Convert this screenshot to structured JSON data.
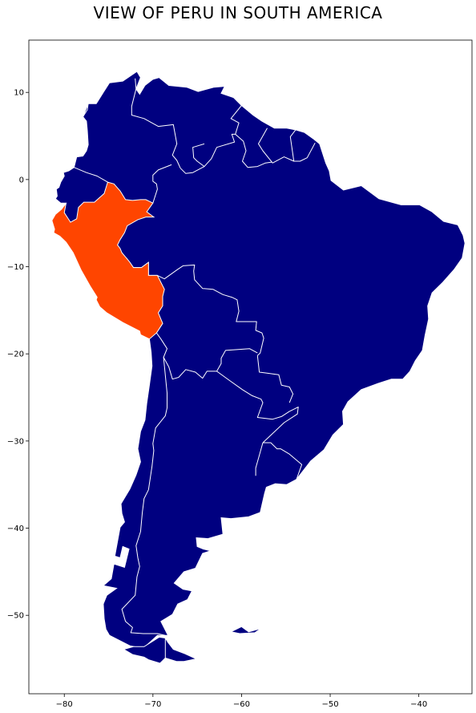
{
  "title": "VIEW OF PERU IN SOUTH AMERICA",
  "colors": {
    "land": "#000080",
    "highlight": "#ff4500",
    "border": "#ffffff",
    "background": "#ffffff"
  },
  "highlighted_country": "Peru",
  "axes": {
    "x_ticks": [
      -80,
      -70,
      -60,
      -50,
      -40
    ],
    "y_ticks": [
      10,
      0,
      -10,
      -20,
      -30,
      -40,
      -50
    ],
    "xlim": [
      -84,
      -34
    ],
    "ylim": [
      -59,
      16
    ]
  },
  "continent_outline": [
    [
      -77.9,
      7.2
    ],
    [
      -77.3,
      8.7
    ],
    [
      -76.4,
      8.7
    ],
    [
      -75.6,
      10.0
    ],
    [
      -74.9,
      11.1
    ],
    [
      -73.4,
      11.3
    ],
    [
      -71.8,
      12.4
    ],
    [
      -71.4,
      11.7
    ],
    [
      -71.9,
      10.4
    ],
    [
      -71.5,
      9.8
    ],
    [
      -70.9,
      10.8
    ],
    [
      -70.0,
      11.5
    ],
    [
      -69.3,
      11.7
    ],
    [
      -68.2,
      10.8
    ],
    [
      -66.2,
      10.6
    ],
    [
      -64.9,
      10.1
    ],
    [
      -63.1,
      10.6
    ],
    [
      -61.9,
      10.7
    ],
    [
      -62.3,
      9.9
    ],
    [
      -60.9,
      9.4
    ],
    [
      -60.0,
      8.5
    ],
    [
      -58.7,
      7.4
    ],
    [
      -57.7,
      6.7
    ],
    [
      -56.3,
      5.9
    ],
    [
      -54.9,
      5.9
    ],
    [
      -53.9,
      5.7
    ],
    [
      -52.9,
      5.4
    ],
    [
      -51.8,
      4.6
    ],
    [
      -51.2,
      4.1
    ],
    [
      -50.5,
      1.9
    ],
    [
      -50.1,
      1.0
    ],
    [
      -49.9,
      -0.1
    ],
    [
      -48.5,
      -1.2
    ],
    [
      -46.5,
      -0.7
    ],
    [
      -44.5,
      -2.2
    ],
    [
      -42.0,
      -2.9
    ],
    [
      -39.9,
      -2.9
    ],
    [
      -38.5,
      -3.7
    ],
    [
      -37.2,
      -4.8
    ],
    [
      -35.6,
      -5.2
    ],
    [
      -35.0,
      -6.4
    ],
    [
      -34.8,
      -7.3
    ],
    [
      -35.1,
      -9.0
    ],
    [
      -36.0,
      -10.3
    ],
    [
      -37.3,
      -11.8
    ],
    [
      -38.5,
      -13.0
    ],
    [
      -39.0,
      -14.5
    ],
    [
      -38.9,
      -16.0
    ],
    [
      -39.3,
      -17.9
    ],
    [
      -39.6,
      -19.6
    ],
    [
      -40.4,
      -20.8
    ],
    [
      -41.0,
      -22.0
    ],
    [
      -41.8,
      -22.9
    ],
    [
      -43.1,
      -22.9
    ],
    [
      -44.6,
      -23.4
    ],
    [
      -46.5,
      -24.1
    ],
    [
      -48.0,
      -25.5
    ],
    [
      -48.6,
      -26.6
    ],
    [
      -48.5,
      -28.1
    ],
    [
      -49.7,
      -29.3
    ],
    [
      -50.7,
      -31.0
    ],
    [
      -52.2,
      -32.3
    ],
    [
      -53.8,
      -34.4
    ],
    [
      -54.9,
      -35.0
    ],
    [
      -56.2,
      -34.9
    ],
    [
      -57.2,
      -35.3
    ],
    [
      -57.4,
      -36.0
    ],
    [
      -57.9,
      -38.2
    ],
    [
      -59.2,
      -38.7
    ],
    [
      -61.2,
      -38.9
    ],
    [
      -62.3,
      -38.8
    ],
    [
      -62.1,
      -40.7
    ],
    [
      -63.8,
      -41.2
    ],
    [
      -65.1,
      -41.1
    ],
    [
      -65.0,
      -42.1
    ],
    [
      -64.3,
      -42.4
    ],
    [
      -63.5,
      -42.6
    ],
    [
      -64.4,
      -42.9
    ],
    [
      -65.2,
      -44.6
    ],
    [
      -66.5,
      -45.0
    ],
    [
      -67.6,
      -46.3
    ],
    [
      -66.6,
      -47.0
    ],
    [
      -65.6,
      -47.2
    ],
    [
      -66.1,
      -48.2
    ],
    [
      -67.2,
      -48.7
    ],
    [
      -67.8,
      -49.9
    ],
    [
      -69.1,
      -50.7
    ],
    [
      -68.3,
      -52.3
    ],
    [
      -69.5,
      -52.3
    ],
    [
      -71.1,
      -53.8
    ],
    [
      -72.6,
      -53.5
    ],
    [
      -74.9,
      -52.3
    ],
    [
      -75.3,
      -51.6
    ],
    [
      -75.5,
      -50.4
    ],
    [
      -75.6,
      -48.7
    ],
    [
      -75.2,
      -47.7
    ],
    [
      -74.1,
      -46.9
    ],
    [
      -75.6,
      -46.6
    ],
    [
      -74.7,
      -45.8
    ],
    [
      -74.4,
      -44.1
    ],
    [
      -73.2,
      -44.5
    ],
    [
      -72.7,
      -42.4
    ],
    [
      -73.4,
      -42.1
    ],
    [
      -73.7,
      -43.4
    ],
    [
      -74.3,
      -43.2
    ],
    [
      -73.7,
      -39.9
    ],
    [
      -73.2,
      -39.3
    ],
    [
      -73.5,
      -38.3
    ],
    [
      -73.6,
      -37.2
    ],
    [
      -72.6,
      -35.5
    ],
    [
      -71.9,
      -33.9
    ],
    [
      -71.4,
      -32.4
    ],
    [
      -71.7,
      -30.9
    ],
    [
      -71.4,
      -28.9
    ],
    [
      -70.9,
      -27.6
    ],
    [
      -70.7,
      -25.7
    ],
    [
      -70.4,
      -23.6
    ],
    [
      -70.1,
      -21.4
    ],
    [
      -70.2,
      -19.8
    ],
    [
      -70.4,
      -18.3
    ],
    [
      -71.4,
      -17.8
    ],
    [
      -71.5,
      -17.4
    ],
    [
      -73.4,
      -16.4
    ],
    [
      -75.2,
      -15.3
    ],
    [
      -76.0,
      -14.6
    ],
    [
      -76.4,
      -13.8
    ],
    [
      -76.3,
      -13.5
    ],
    [
      -77.1,
      -12.2
    ],
    [
      -78.1,
      -10.4
    ],
    [
      -79.0,
      -8.4
    ],
    [
      -79.8,
      -7.2
    ],
    [
      -80.5,
      -6.5
    ],
    [
      -81.2,
      -6.1
    ],
    [
      -81.1,
      -5.7
    ],
    [
      -81.4,
      -4.7
    ],
    [
      -81.0,
      -4.0
    ],
    [
      -80.3,
      -3.4
    ],
    [
      -79.8,
      -2.7
    ],
    [
      -80.4,
      -2.7
    ],
    [
      -81.0,
      -2.2
    ],
    [
      -80.8,
      -1.9
    ],
    [
      -80.9,
      -1.1
    ],
    [
      -80.6,
      -0.9
    ],
    [
      -80.4,
      -0.3
    ],
    [
      -80.0,
      0.4
    ],
    [
      -80.1,
      0.8
    ],
    [
      -79.5,
      1.0
    ],
    [
      -78.9,
      1.4
    ],
    [
      -78.6,
      2.6
    ],
    [
      -77.9,
      2.7
    ],
    [
      -77.5,
      3.3
    ],
    [
      -77.3,
      4.0
    ],
    [
      -77.4,
      5.6
    ],
    [
      -77.5,
      6.7
    ],
    [
      -77.9,
      7.2
    ]
  ],
  "tierra_del_fuego": [
    [
      -68.6,
      -52.6
    ],
    [
      -68.3,
      -53.1
    ],
    [
      -67.7,
      -53.9
    ],
    [
      -66.4,
      -54.4
    ],
    [
      -65.1,
      -55.0
    ],
    [
      -66.5,
      -55.3
    ],
    [
      -67.3,
      -55.3
    ],
    [
      -68.6,
      -54.9
    ],
    [
      -69.2,
      -55.5
    ],
    [
      -70.5,
      -55.1
    ],
    [
      -71.0,
      -54.8
    ],
    [
      -72.3,
      -54.5
    ],
    [
      -73.3,
      -53.9
    ],
    [
      -72.2,
      -53.6
    ],
    [
      -71.0,
      -53.6
    ],
    [
      -69.3,
      -52.5
    ],
    [
      -68.6,
      -52.6
    ]
  ],
  "falklands": [
    [
      -61.2,
      -51.9
    ],
    [
      -60.0,
      -51.3
    ],
    [
      -59.2,
      -51.9
    ],
    [
      -57.8,
      -51.5
    ],
    [
      -58.5,
      -52.0
    ],
    [
      -60.2,
      -52.1
    ],
    [
      -61.2,
      -51.9
    ]
  ],
  "peru_outline": [
    [
      -69.9,
      -4.3
    ],
    [
      -70.8,
      -4.3
    ],
    [
      -71.7,
      -4.6
    ],
    [
      -72.9,
      -5.3
    ],
    [
      -73.2,
      -6.1
    ],
    [
      -73.7,
      -6.9
    ],
    [
      -74.0,
      -7.5
    ],
    [
      -73.7,
      -7.9
    ],
    [
      -73.5,
      -8.4
    ],
    [
      -73.0,
      -9.0
    ],
    [
      -72.6,
      -9.5
    ],
    [
      -72.2,
      -10.1
    ],
    [
      -71.3,
      -10.1
    ],
    [
      -70.5,
      -9.5
    ],
    [
      -70.5,
      -11.0
    ],
    [
      -69.5,
      -11.0
    ],
    [
      -68.7,
      -12.6
    ],
    [
      -68.9,
      -13.4
    ],
    [
      -68.9,
      -14.5
    ],
    [
      -69.4,
      -15.3
    ],
    [
      -68.9,
      -16.5
    ],
    [
      -69.6,
      -17.6
    ],
    [
      -70.4,
      -18.3
    ],
    [
      -71.4,
      -17.8
    ],
    [
      -71.5,
      -17.4
    ],
    [
      -73.4,
      -16.4
    ],
    [
      -75.2,
      -15.3
    ],
    [
      -76.0,
      -14.6
    ],
    [
      -76.4,
      -13.8
    ],
    [
      -76.3,
      -13.5
    ],
    [
      -77.1,
      -12.2
    ],
    [
      -78.1,
      -10.4
    ],
    [
      -79.0,
      -8.4
    ],
    [
      -79.8,
      -7.2
    ],
    [
      -80.5,
      -6.5
    ],
    [
      -81.2,
      -6.1
    ],
    [
      -81.1,
      -5.7
    ],
    [
      -81.4,
      -4.7
    ],
    [
      -81.0,
      -4.0
    ],
    [
      -80.3,
      -3.4
    ],
    [
      -79.8,
      -2.7
    ],
    [
      -80.0,
      -3.8
    ],
    [
      -79.3,
      -4.9
    ],
    [
      -78.6,
      -4.5
    ],
    [
      -78.4,
      -3.2
    ],
    [
      -77.8,
      -2.6
    ],
    [
      -76.6,
      -2.6
    ],
    [
      -75.5,
      -1.6
    ],
    [
      -75.1,
      -0.3
    ],
    [
      -74.4,
      -0.5
    ],
    [
      -73.7,
      -1.3
    ],
    [
      -73.1,
      -2.3
    ],
    [
      -72.3,
      -2.4
    ],
    [
      -71.4,
      -2.3
    ],
    [
      -70.8,
      -2.3
    ],
    [
      -70.0,
      -2.7
    ],
    [
      -70.7,
      -3.7
    ],
    [
      -69.9,
      -4.3
    ]
  ],
  "borders": [
    [
      [
        -75.1,
        -0.3
      ],
      [
        -76.3,
        0.4
      ],
      [
        -77.5,
        0.8
      ],
      [
        -78.9,
        1.4
      ]
    ],
    [
      [
        -70.0,
        -2.7
      ],
      [
        -69.5,
        -1.1
      ],
      [
        -69.6,
        -0.5
      ],
      [
        -70.0,
        -0.2
      ],
      [
        -70.0,
        0.5
      ],
      [
        -69.4,
        1.1
      ],
      [
        -67.9,
        1.7
      ]
    ],
    [
      [
        -77.3,
        8.7
      ],
      [
        -77.4,
        8.0
      ],
      [
        -77.9,
        7.2
      ]
    ],
    [
      [
        -72.0,
        11.6
      ],
      [
        -71.9,
        10.4
      ],
      [
        -72.4,
        8.4
      ],
      [
        -72.4,
        7.4
      ],
      [
        -71.0,
        7.0
      ],
      [
        -69.4,
        6.1
      ],
      [
        -67.7,
        6.3
      ],
      [
        -67.3,
        4.1
      ],
      [
        -67.8,
        2.8
      ],
      [
        -67.3,
        2.2
      ],
      [
        -66.9,
        1.3
      ]
    ],
    [
      [
        -64.2,
        4.1
      ],
      [
        -65.5,
        3.7
      ],
      [
        -65.4,
        2.5
      ],
      [
        -65.0,
        2.1
      ],
      [
        -64.2,
        1.5
      ],
      [
        -63.4,
        2.4
      ],
      [
        -62.8,
        3.7
      ],
      [
        -60.8,
        4.3
      ],
      [
        -61.1,
        5.2
      ],
      [
        -60.7,
        5.2
      ],
      [
        -60.3,
        6.5
      ],
      [
        -61.2,
        7.0
      ],
      [
        -60.0,
        8.5
      ]
    ],
    [
      [
        -60.7,
        5.2
      ],
      [
        -59.8,
        4.4
      ],
      [
        -59.5,
        3.3
      ],
      [
        -59.9,
        2.1
      ],
      [
        -59.3,
        1.4
      ],
      [
        -58.2,
        1.5
      ],
      [
        -57.3,
        1.9
      ],
      [
        -56.6,
        2.0
      ]
    ],
    [
      [
        -57.1,
        5.9
      ],
      [
        -58.1,
        4.1
      ],
      [
        -57.6,
        3.3
      ],
      [
        -56.5,
        1.9
      ],
      [
        -55.2,
        2.6
      ],
      [
        -54.1,
        2.1
      ],
      [
        -54.5,
        4.9
      ],
      [
        -53.9,
        5.7
      ]
    ],
    [
      [
        -54.1,
        2.1
      ],
      [
        -53.4,
        2.1
      ],
      [
        -52.6,
        2.5
      ],
      [
        -51.7,
        4.2
      ]
    ],
    [
      [
        -66.9,
        1.3
      ],
      [
        -66.3,
        0.7
      ],
      [
        -65.5,
        0.8
      ],
      [
        -64.2,
        1.5
      ]
    ],
    [
      [
        -73.0,
        -9.0
      ],
      [
        -72.2,
        -10.1
      ],
      [
        -71.3,
        -10.1
      ],
      [
        -70.5,
        -9.5
      ],
      [
        -70.5,
        -11.0
      ],
      [
        -69.5,
        -11.0
      ],
      [
        -68.7,
        -11.4
      ],
      [
        -67.2,
        -10.3
      ],
      [
        -66.6,
        -9.9
      ],
      [
        -65.3,
        -9.8
      ],
      [
        -65.4,
        -10.5
      ],
      [
        -65.3,
        -11.5
      ],
      [
        -64.4,
        -12.5
      ],
      [
        -63.2,
        -12.6
      ],
      [
        -62.1,
        -13.2
      ],
      [
        -61.1,
        -13.5
      ],
      [
        -60.5,
        -13.8
      ],
      [
        -60.3,
        -15.1
      ],
      [
        -60.6,
        -16.3
      ],
      [
        -58.3,
        -16.3
      ],
      [
        -58.4,
        -17.3
      ],
      [
        -57.7,
        -17.6
      ],
      [
        -57.5,
        -18.2
      ],
      [
        -57.9,
        -19.9
      ],
      [
        -58.2,
        -20.2
      ]
    ],
    [
      [
        -68.9,
        -16.5
      ],
      [
        -69.6,
        -17.6
      ],
      [
        -69.1,
        -18.3
      ],
      [
        -68.4,
        -19.4
      ],
      [
        -68.8,
        -20.4
      ],
      [
        -68.2,
        -21.5
      ],
      [
        -67.8,
        -22.9
      ],
      [
        -67.1,
        -22.7
      ]
    ],
    [
      [
        -67.1,
        -22.7
      ],
      [
        -66.3,
        -21.8
      ],
      [
        -65.2,
        -22.1
      ],
      [
        -64.4,
        -22.8
      ],
      [
        -63.9,
        -22.0
      ],
      [
        -62.8,
        -22.0
      ],
      [
        -62.3,
        -21.1
      ],
      [
        -62.3,
        -20.5
      ],
      [
        -61.8,
        -19.6
      ],
      [
        -59.1,
        -19.4
      ],
      [
        -58.2,
        -19.9
      ]
    ],
    [
      [
        -58.2,
        -20.2
      ],
      [
        -58.0,
        -22.1
      ],
      [
        -57.2,
        -22.2
      ],
      [
        -55.8,
        -22.4
      ],
      [
        -55.5,
        -23.6
      ],
      [
        -54.6,
        -23.8
      ],
      [
        -54.2,
        -24.6
      ],
      [
        -54.6,
        -25.6
      ]
    ],
    [
      [
        -62.8,
        -22.0
      ],
      [
        -61.3,
        -23.1
      ],
      [
        -59.9,
        -24.1
      ],
      [
        -58.8,
        -24.8
      ],
      [
        -57.8,
        -25.2
      ],
      [
        -57.6,
        -25.6
      ],
      [
        -58.2,
        -27.3
      ],
      [
        -56.5,
        -27.5
      ],
      [
        -55.5,
        -27.2
      ],
      [
        -54.6,
        -26.6
      ],
      [
        -53.6,
        -26.1
      ],
      [
        -53.7,
        -26.9
      ],
      [
        -55.2,
        -27.9
      ],
      [
        -57.6,
        -30.2
      ]
    ],
    [
      [
        -57.6,
        -30.2
      ],
      [
        -56.7,
        -30.2
      ],
      [
        -56.0,
        -30.9
      ],
      [
        -55.6,
        -30.9
      ],
      [
        -54.6,
        -31.5
      ],
      [
        -53.2,
        -32.7
      ],
      [
        -53.8,
        -34.4
      ]
    ],
    [
      [
        -57.6,
        -30.2
      ],
      [
        -58.1,
        -32.0
      ],
      [
        -58.4,
        -33.1
      ],
      [
        -58.4,
        -34.0
      ]
    ],
    [
      [
        -68.8,
        -20.4
      ],
      [
        -68.4,
        -24.5
      ],
      [
        -68.4,
        -26.2
      ],
      [
        -68.6,
        -27.1
      ],
      [
        -69.7,
        -28.5
      ],
      [
        -70.0,
        -30.3
      ],
      [
        -69.9,
        -31.1
      ],
      [
        -70.1,
        -32.9
      ],
      [
        -70.5,
        -35.6
      ],
      [
        -71.0,
        -36.6
      ],
      [
        -71.2,
        -38.2
      ],
      [
        -71.4,
        -40.4
      ],
      [
        -71.9,
        -42.0
      ],
      [
        -71.7,
        -43.4
      ],
      [
        -71.5,
        -44.4
      ],
      [
        -71.8,
        -45.6
      ],
      [
        -72.0,
        -47.7
      ],
      [
        -73.5,
        -49.3
      ],
      [
        -73.1,
        -50.7
      ],
      [
        -72.3,
        -51.4
      ],
      [
        -72.5,
        -52.0
      ],
      [
        -71.1,
        -52.1
      ],
      [
        -69.5,
        -52.1
      ],
      [
        -68.6,
        -52.3
      ]
    ],
    [
      [
        -68.6,
        -52.6
      ],
      [
        -68.6,
        -54.9
      ]
    ]
  ]
}
